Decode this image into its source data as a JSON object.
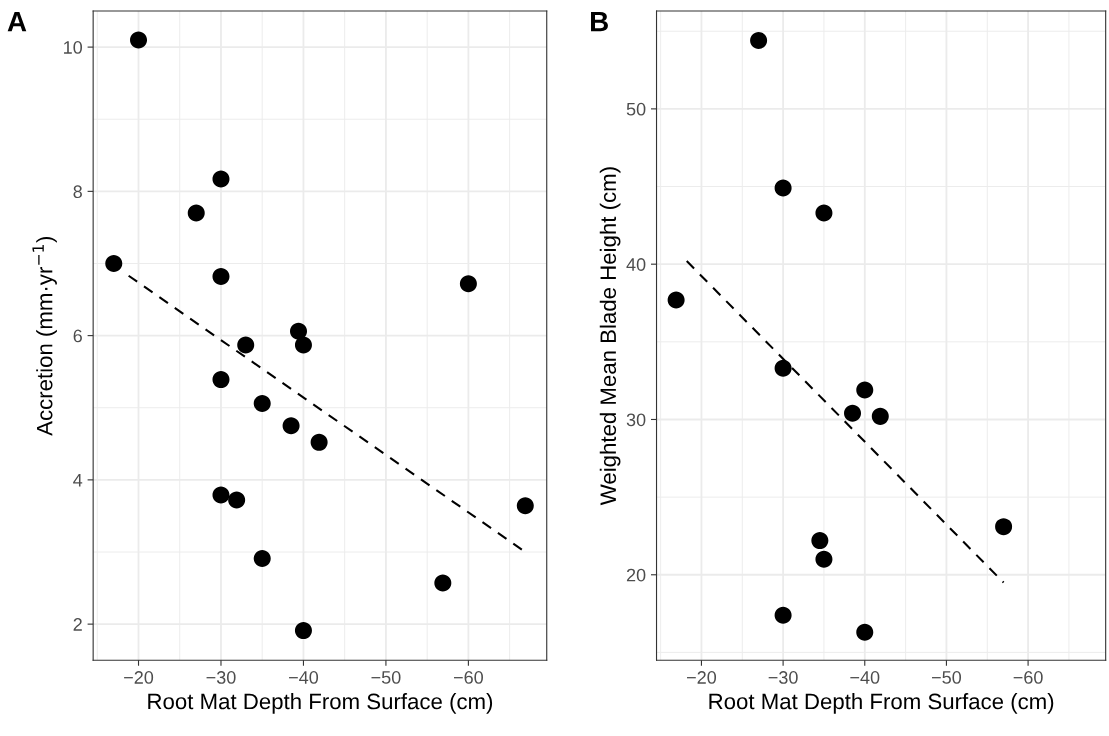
{
  "chart_data": [
    {
      "type": "scatter",
      "title": "A",
      "xlabel": "Root Mat Depth From Surface (cm)",
      "ylabel": "Accretion (mm·yr$^{−1}$)",
      "xlim": [
        -14.5,
        -69.5
      ],
      "xticks": [
        {
          "value": -20,
          "label": "−20"
        },
        {
          "value": -30,
          "label": "−30"
        },
        {
          "value": -40,
          "label": "−40"
        },
        {
          "value": -50,
          "label": "−50"
        },
        {
          "value": -60,
          "label": "−60"
        }
      ],
      "ylim": [
        1.5,
        10.5
      ],
      "yticks": [
        2,
        4,
        6,
        8,
        10
      ],
      "grid": true,
      "legend": false,
      "series": [
        {
          "color": "#000000",
          "marker": "circle",
          "x": [
            -17,
            -20,
            -27,
            -30,
            -30,
            -30,
            -30,
            -31.9,
            -33,
            -35,
            -35,
            -39.4,
            -40,
            -38.5,
            -41.9,
            -40,
            -56.9,
            -60,
            -66.9
          ],
          "values": [
            7.0,
            10.1,
            7.7,
            8.17,
            6.82,
            5.39,
            3.79,
            3.72,
            5.87,
            5.06,
            2.91,
            6.06,
            5.87,
            4.75,
            4.52,
            1.91,
            2.57,
            6.72,
            3.64
          ]
        },
        {
          "type": "line",
          "color": "#000000",
          "line_style": "dashed",
          "x": [
            -18.8,
            -66.9
          ],
          "values": [
            6.83,
            3.0
          ]
        }
      ]
    },
    {
      "type": "scatter",
      "title": "B",
      "xlabel": "Root Mat Depth From Surface (cm)",
      "ylabel": "Weighted Mean Blade Height (cm)",
      "xlim": [
        -14.5,
        -69.5
      ],
      "xticks": [
        {
          "value": -20,
          "label": "−20"
        },
        {
          "value": -30,
          "label": "−30"
        },
        {
          "value": -40,
          "label": "−40"
        },
        {
          "value": -50,
          "label": "−50"
        },
        {
          "value": -60,
          "label": "−60"
        }
      ],
      "ylim": [
        14.5,
        56.3
      ],
      "yticks": [
        20,
        30,
        40,
        50
      ],
      "grid": true,
      "legend": false,
      "series": [
        {
          "color": "#000000",
          "marker": "circle",
          "x": [
            -16.9,
            -27,
            -30,
            -35,
            -30,
            -40,
            -38.5,
            -41.9,
            -57,
            -34.5,
            -35,
            -30,
            -40
          ],
          "values": [
            37.7,
            54.4,
            44.9,
            43.3,
            33.3,
            31.9,
            30.4,
            30.2,
            23.1,
            22.2,
            21.0,
            17.4,
            16.3
          ]
        },
        {
          "type": "line",
          "color": "#000000",
          "line_style": "dashed",
          "x": [
            -18.2,
            -57.0
          ],
          "values": [
            40.2,
            19.5
          ]
        }
      ]
    }
  ]
}
